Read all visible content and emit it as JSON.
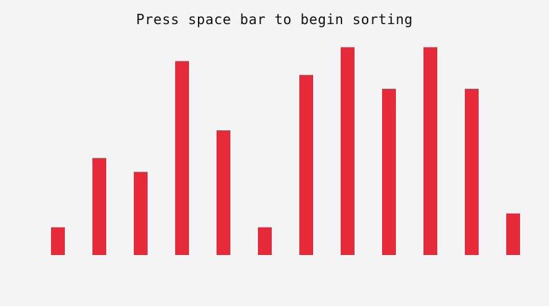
{
  "app": {
    "prompt_text": "Press space bar to begin sorting"
  },
  "colors": {
    "background": "#f4f4f4",
    "bar": "#e62a3a",
    "text": "#111111"
  },
  "chart_data": {
    "type": "bar",
    "values": [
      2,
      7,
      6,
      14,
      9,
      2,
      13,
      15,
      12,
      15,
      12,
      3
    ],
    "ylim": [
      0,
      15
    ],
    "grid": false
  }
}
